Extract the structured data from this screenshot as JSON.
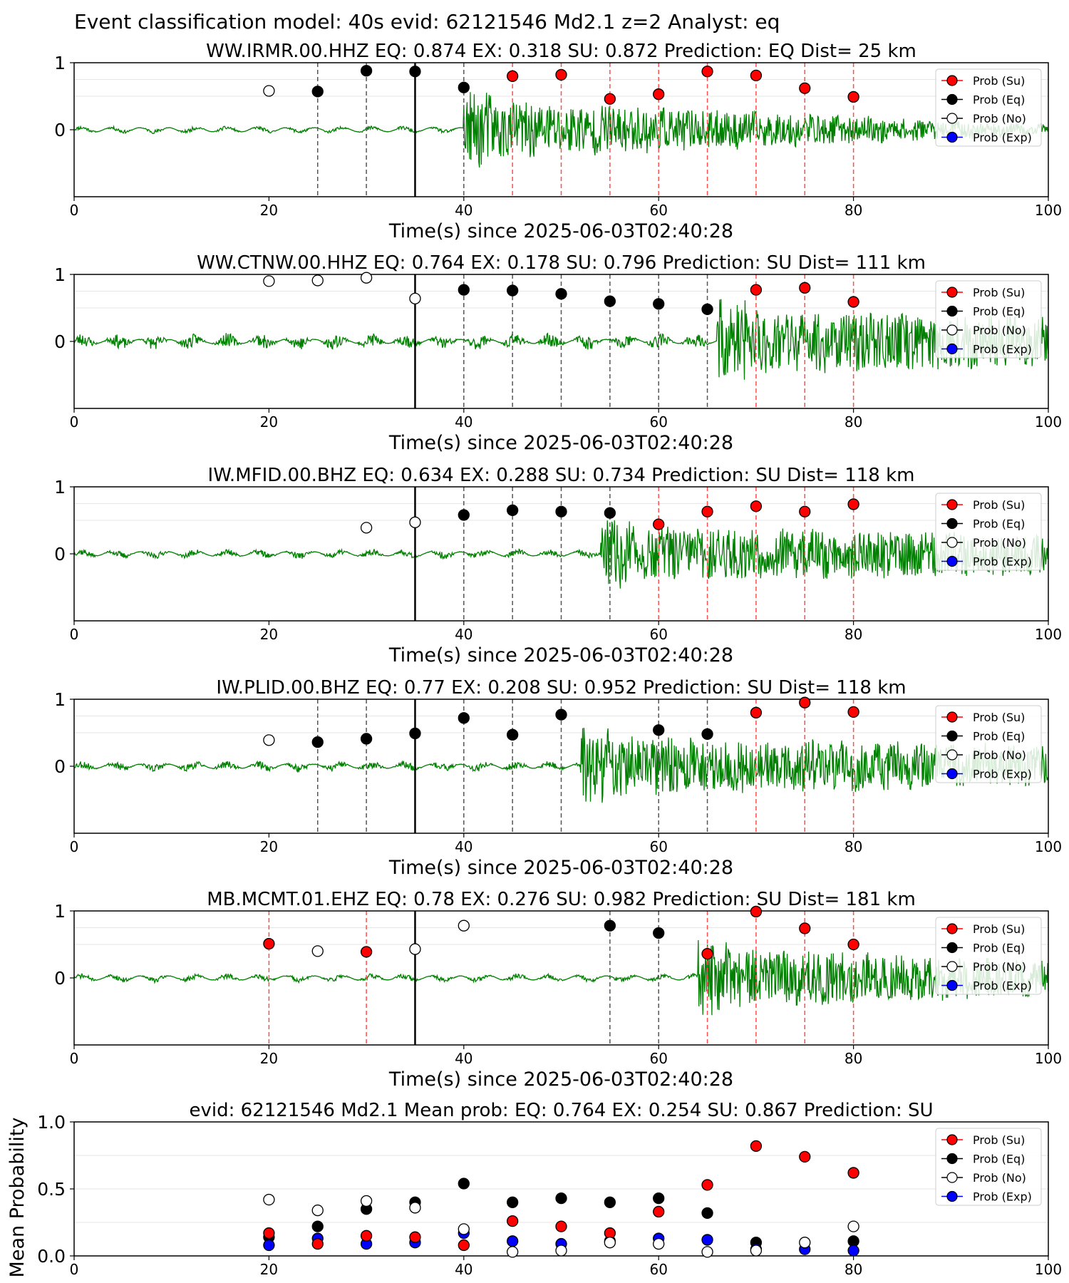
{
  "figure_title": "Event classification model: 40s evid: 62121546 Md2.1 z=2 Analyst: eq",
  "colors": {
    "waveform": "#008000",
    "su": "#ff0000",
    "eq": "#000000",
    "no": "#ffffff",
    "exp": "#0000ff",
    "su_line": "#ff4d4d",
    "eq_line": "#555555",
    "origin_line": "#000000"
  },
  "legend_labels": [
    "Prob (Su)",
    "Prob (Eq)",
    "Prob (No)",
    "Prob (Exp)"
  ],
  "chart_data": [
    {
      "type": "scatter",
      "title": "WW.IRMR.00.HHZ   EQ: 0.874  EX: 0.318  SU: 0.872   Prediction: EQ    Dist= 25 km",
      "xlabel": "Time(s) since 2025-06-03T02:40:28",
      "xlim": [
        0,
        100
      ],
      "ylim": [
        -1,
        1
      ],
      "xticks": [
        "0",
        "20",
        "40",
        "60",
        "80",
        "100"
      ],
      "yticks": [
        "0",
        "1"
      ],
      "origin_line": 35,
      "waveform": {
        "onset": 40,
        "pre_amp": 0.03,
        "post_amp": 0.45,
        "decay_to": 0.06,
        "seed": 11
      },
      "series": [
        {
          "name": "Prob (No)",
          "points": [
            [
              20,
              0.58
            ]
          ]
        },
        {
          "name": "Prob (Eq)",
          "points": [
            [
              25,
              0.57
            ],
            [
              30,
              0.88
            ],
            [
              35,
              0.87
            ],
            [
              40,
              0.63
            ]
          ]
        },
        {
          "name": "Prob (Su)",
          "points": [
            [
              45,
              0.8
            ],
            [
              50,
              0.82
            ],
            [
              55,
              0.46
            ],
            [
              60,
              0.53
            ],
            [
              65,
              0.87
            ],
            [
              70,
              0.81
            ],
            [
              75,
              0.62
            ],
            [
              80,
              0.49
            ]
          ]
        }
      ],
      "vlines_eq": [
        25,
        30,
        40
      ],
      "vlines_su": [
        45,
        50,
        55,
        60,
        65,
        70,
        75,
        80
      ]
    },
    {
      "type": "scatter",
      "title": "WW.CTNW.00.HHZ   EQ: 0.764  EX: 0.178  SU: 0.796   Prediction: SU    Dist= 111 km",
      "xlabel": "Time(s) since 2025-06-03T02:40:28",
      "xlim": [
        0,
        100
      ],
      "ylim": [
        -1,
        1
      ],
      "xticks": [
        "0",
        "20",
        "40",
        "60",
        "80",
        "100"
      ],
      "yticks": [
        "0",
        "1"
      ],
      "origin_line": 35,
      "waveform": {
        "onset": 66,
        "pre_amp": 0.1,
        "post_amp": 0.5,
        "decay_to": 0.35,
        "seed": 23
      },
      "series": [
        {
          "name": "Prob (No)",
          "points": [
            [
              20,
              0.9
            ],
            [
              25,
              0.91
            ],
            [
              30,
              0.95
            ],
            [
              35,
              0.64
            ]
          ]
        },
        {
          "name": "Prob (Eq)",
          "points": [
            [
              40,
              0.77
            ],
            [
              45,
              0.76
            ],
            [
              50,
              0.71
            ],
            [
              55,
              0.6
            ],
            [
              60,
              0.56
            ],
            [
              65,
              0.48
            ]
          ]
        },
        {
          "name": "Prob (Su)",
          "points": [
            [
              70,
              0.77
            ],
            [
              75,
              0.8
            ],
            [
              80,
              0.59
            ]
          ]
        }
      ],
      "vlines_eq": [
        40,
        45,
        50,
        55,
        60,
        65
      ],
      "vlines_su": [
        70,
        75,
        80
      ]
    },
    {
      "type": "scatter",
      "title": "IW.MFID.00.BHZ   EQ: 0.634  EX: 0.288  SU: 0.734   Prediction: SU    Dist= 118 km",
      "xlabel": "Time(s) since 2025-06-03T02:40:28",
      "xlim": [
        0,
        100
      ],
      "ylim": [
        -1,
        1
      ],
      "xticks": [
        "0",
        "20",
        "40",
        "60",
        "80",
        "100"
      ],
      "yticks": [
        "0",
        "1"
      ],
      "origin_line": 35,
      "waveform": {
        "onset": 54,
        "pre_amp": 0.05,
        "post_amp": 0.4,
        "decay_to": 0.3,
        "seed": 37
      },
      "series": [
        {
          "name": "Prob (No)",
          "points": [
            [
              30,
              0.39
            ],
            [
              35,
              0.47
            ]
          ]
        },
        {
          "name": "Prob (Eq)",
          "points": [
            [
              40,
              0.58
            ],
            [
              45,
              0.65
            ],
            [
              50,
              0.63
            ],
            [
              55,
              0.61
            ]
          ]
        },
        {
          "name": "Prob (Su)",
          "points": [
            [
              60,
              0.44
            ],
            [
              65,
              0.63
            ],
            [
              70,
              0.71
            ],
            [
              75,
              0.63
            ],
            [
              80,
              0.74
            ]
          ]
        }
      ],
      "vlines_eq": [
        40,
        45,
        50,
        55
      ],
      "vlines_su": [
        60,
        65,
        70,
        75,
        80
      ]
    },
    {
      "type": "scatter",
      "title": "IW.PLID.00.BHZ   EQ: 0.77  EX: 0.208  SU: 0.952   Prediction: SU    Dist= 118 km",
      "xlabel": "Time(s) since 2025-06-03T02:40:28",
      "xlim": [
        0,
        100
      ],
      "ylim": [
        -1,
        1
      ],
      "xticks": [
        "0",
        "20",
        "40",
        "60",
        "80",
        "100"
      ],
      "yticks": [
        "0",
        "1"
      ],
      "origin_line": 35,
      "waveform": {
        "onset": 52,
        "pre_amp": 0.06,
        "post_amp": 0.45,
        "decay_to": 0.3,
        "seed": 53
      },
      "series": [
        {
          "name": "Prob (No)",
          "points": [
            [
              20,
              0.39
            ]
          ]
        },
        {
          "name": "Prob (Eq)",
          "points": [
            [
              25,
              0.36
            ],
            [
              30,
              0.41
            ],
            [
              35,
              0.49
            ],
            [
              40,
              0.72
            ],
            [
              45,
              0.47
            ],
            [
              50,
              0.77
            ],
            [
              60,
              0.54
            ],
            [
              65,
              0.48
            ]
          ]
        },
        {
          "name": "Prob (Su)",
          "points": [
            [
              70,
              0.8
            ],
            [
              75,
              0.95
            ],
            [
              80,
              0.81
            ]
          ]
        }
      ],
      "vlines_eq": [
        25,
        30,
        40,
        45,
        50,
        60,
        65
      ],
      "vlines_su": [
        70,
        75,
        80
      ]
    },
    {
      "type": "scatter",
      "title": "MB.MCMT.01.EHZ   EQ: 0.78  EX: 0.276  SU: 0.982   Prediction: SU    Dist= 181 km",
      "xlabel": "Time(s) since 2025-06-03T02:40:28",
      "xlim": [
        0,
        100
      ],
      "ylim": [
        -1,
        1
      ],
      "xticks": [
        "0",
        "20",
        "40",
        "60",
        "80",
        "100"
      ],
      "yticks": [
        "0",
        "1"
      ],
      "origin_line": 35,
      "waveform": {
        "onset": 64,
        "pre_amp": 0.04,
        "post_amp": 0.45,
        "decay_to": 0.25,
        "seed": 71
      },
      "series": [
        {
          "name": "Prob (No)",
          "points": [
            [
              25,
              0.4
            ],
            [
              35,
              0.43
            ],
            [
              40,
              0.78
            ]
          ]
        },
        {
          "name": "Prob (Eq)",
          "points": [
            [
              55,
              0.78
            ],
            [
              60,
              0.67
            ]
          ]
        },
        {
          "name": "Prob (Su)",
          "points": [
            [
              20,
              0.51
            ],
            [
              30,
              0.39
            ],
            [
              65,
              0.36
            ],
            [
              70,
              0.99
            ],
            [
              75,
              0.74
            ],
            [
              80,
              0.5
            ]
          ]
        }
      ],
      "vlines_eq": [
        55,
        60
      ],
      "vlines_su": [
        20,
        30,
        65,
        70,
        75,
        80
      ]
    },
    {
      "type": "scatter",
      "title": "evid: 62121546  Md2.1   Mean prob:   EQ: 0.764  EX: 0.254  SU: 0.867   Prediction: SU",
      "xlabel": "",
      "ylabel": "Mean Probability",
      "xlim": [
        0,
        100
      ],
      "ylim": [
        0,
        1
      ],
      "xticks": [
        "0",
        "20",
        "40",
        "60",
        "80",
        "100"
      ],
      "yticks": [
        "0.0",
        "0.5",
        "1.0"
      ],
      "series": [
        {
          "name": "Prob (Eq)",
          "points": [
            [
              20,
              0.14
            ],
            [
              25,
              0.22
            ],
            [
              30,
              0.35
            ],
            [
              35,
              0.4
            ],
            [
              40,
              0.54
            ],
            [
              45,
              0.4
            ],
            [
              50,
              0.43
            ],
            [
              55,
              0.4
            ],
            [
              60,
              0.43
            ],
            [
              65,
              0.32
            ],
            [
              70,
              0.1
            ],
            [
              80,
              0.11
            ]
          ]
        },
        {
          "name": "Prob (Exp)",
          "points": [
            [
              20,
              0.08
            ],
            [
              25,
              0.13
            ],
            [
              30,
              0.09
            ],
            [
              35,
              0.1
            ],
            [
              40,
              0.17
            ],
            [
              45,
              0.11
            ],
            [
              50,
              0.09
            ],
            [
              55,
              0.11
            ],
            [
              60,
              0.13
            ],
            [
              65,
              0.12
            ],
            [
              70,
              0.05
            ],
            [
              75,
              0.05
            ],
            [
              80,
              0.04
            ]
          ]
        },
        {
          "name": "Prob (Su)",
          "points": [
            [
              20,
              0.17
            ],
            [
              25,
              0.09
            ],
            [
              30,
              0.15
            ],
            [
              35,
              0.14
            ],
            [
              40,
              0.08
            ],
            [
              45,
              0.26
            ],
            [
              50,
              0.22
            ],
            [
              55,
              0.17
            ],
            [
              60,
              0.33
            ],
            [
              65,
              0.53
            ],
            [
              70,
              0.82
            ],
            [
              75,
              0.74
            ],
            [
              80,
              0.62
            ]
          ]
        },
        {
          "name": "Prob (No)",
          "points": [
            [
              20,
              0.42
            ],
            [
              25,
              0.34
            ],
            [
              30,
              0.41
            ],
            [
              35,
              0.36
            ],
            [
              40,
              0.2
            ],
            [
              45,
              0.03
            ],
            [
              50,
              0.04
            ],
            [
              55,
              0.1
            ],
            [
              60,
              0.09
            ],
            [
              65,
              0.03
            ],
            [
              70,
              0.04
            ],
            [
              75,
              0.1
            ],
            [
              80,
              0.22
            ]
          ]
        }
      ]
    }
  ]
}
